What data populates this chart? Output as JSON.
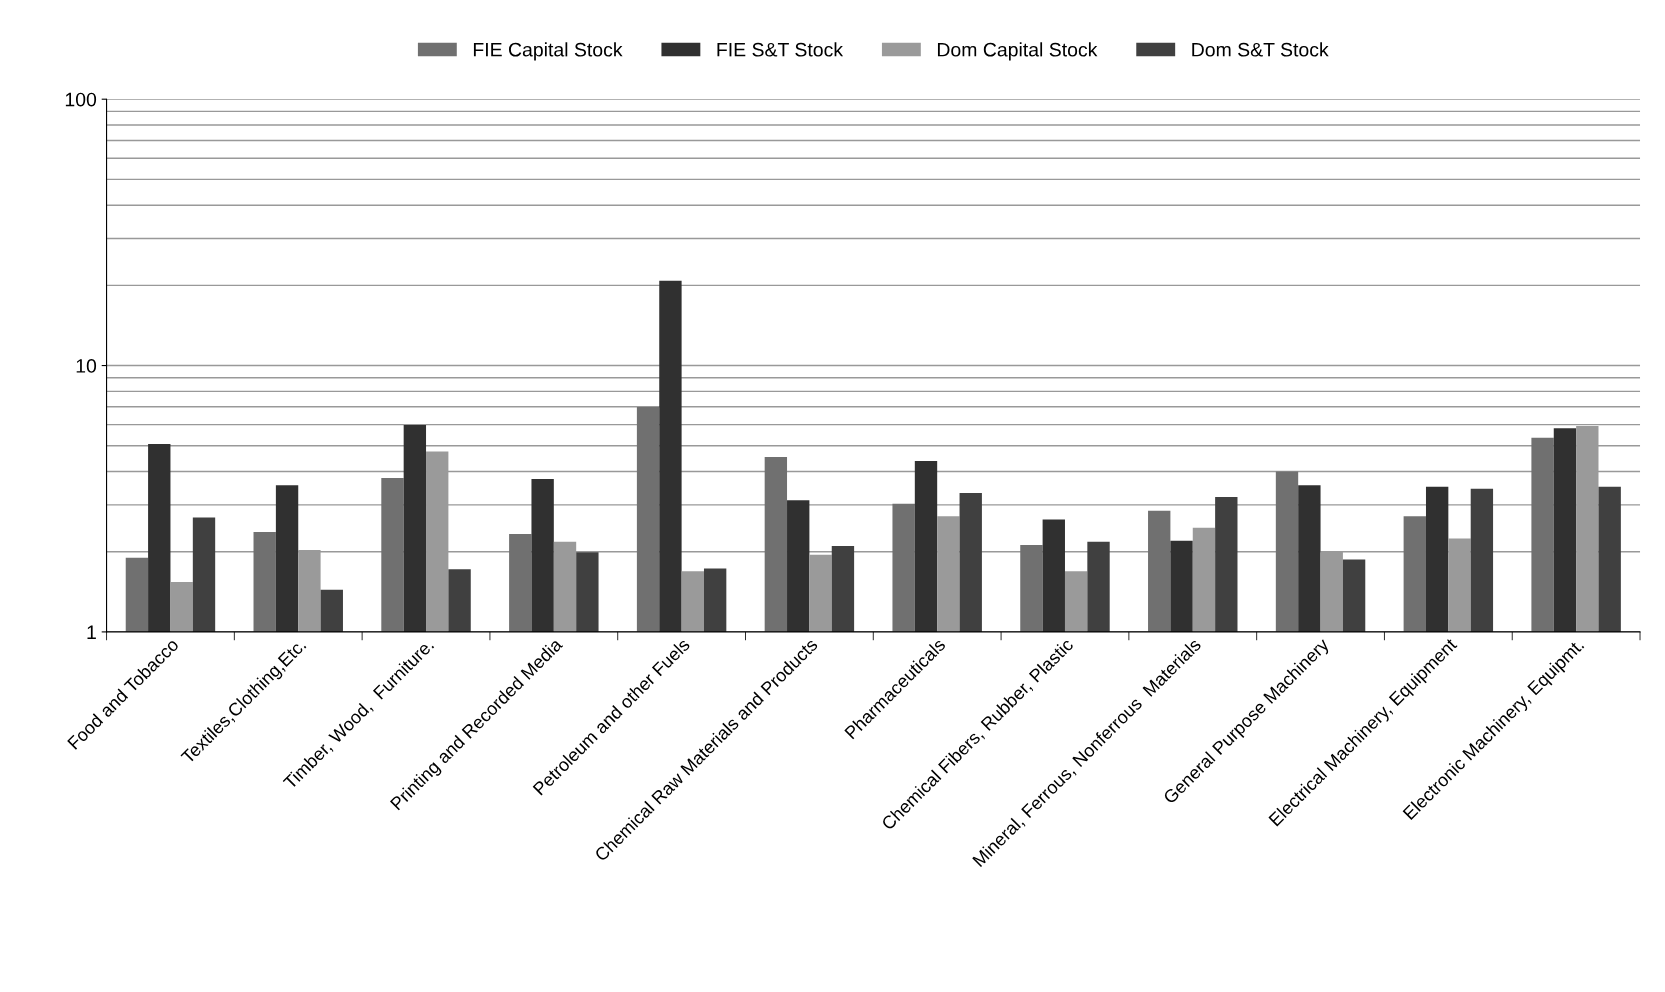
{
  "chart_data": {
    "type": "bar",
    "categories": [
      "Food and Tobacco",
      "Textiles,Clothing,Etc.",
      "Timber, Wood,  Furniture.",
      "Printing and Recorded Media",
      "Petroleum and other Fuels",
      "Chemical Raw Materials and Products",
      "Pharmaceuticals",
      "Chemical Fibers, Rubber, Plastic",
      "Mineral, Ferrous, Nonferrous  Materials",
      "General Purpose Machinery",
      "Electrical Machinery, Equipment",
      "Electronic Machinery, Equipmt."
    ],
    "series": [
      {
        "name": "FIE Capital Stock",
        "color": "#707070",
        "values": [
          1.9,
          2.37,
          3.78,
          2.33,
          6.99,
          4.54,
          3.03,
          2.12,
          2.85,
          4.0,
          2.72,
          5.36
        ]
      },
      {
        "name": "FIE S&T Stock",
        "color": "#303030",
        "values": [
          5.07,
          3.55,
          5.98,
          3.75,
          20.8,
          3.12,
          4.38,
          2.64,
          2.2,
          3.55,
          3.51,
          5.82
        ]
      },
      {
        "name": "Dom Capital Stock",
        "color": "#9a9a9a",
        "values": [
          1.54,
          2.03,
          4.76,
          2.18,
          1.69,
          1.95,
          2.72,
          1.69,
          2.46,
          2.01,
          2.24,
          5.93
        ]
      },
      {
        "name": "Dom S&T Stock",
        "color": "#404040",
        "values": [
          2.69,
          1.44,
          1.72,
          1.99,
          1.73,
          2.1,
          3.32,
          2.18,
          3.21,
          1.87,
          3.45,
          3.51
        ]
      }
    ],
    "log": true,
    "ylim": [
      1,
      100
    ],
    "yticks": [
      1,
      10,
      100
    ],
    "grid": "y",
    "legend": "top"
  }
}
